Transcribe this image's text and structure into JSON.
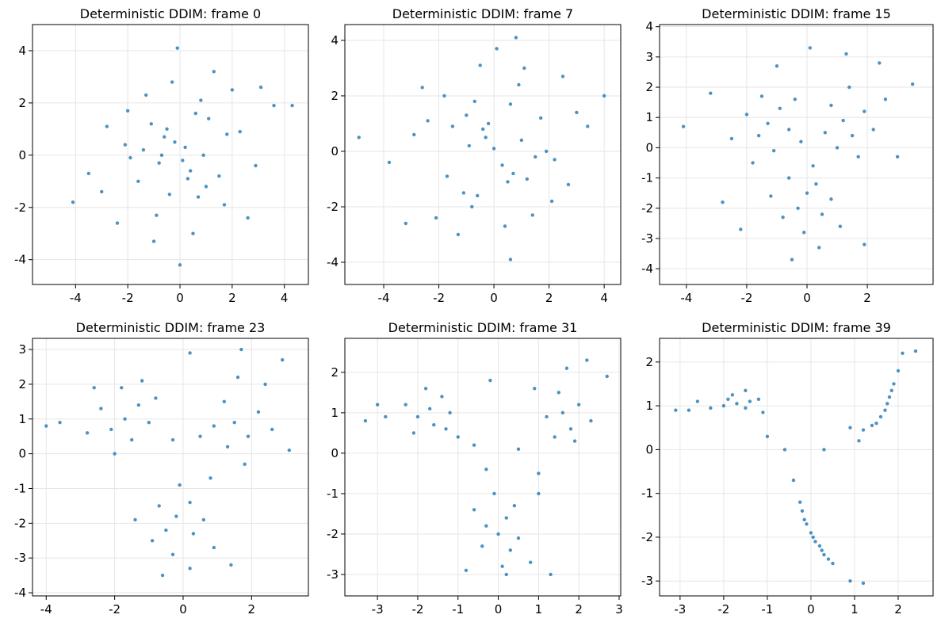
{
  "chart_data": [
    {
      "type": "scatter",
      "title": "Deterministic DDIM: frame 0",
      "color": "#1f77b4",
      "grid": true,
      "xlim": [
        -5.65,
        4.92
      ],
      "ylim": [
        -4.95,
        5.0
      ],
      "xticks": [
        -4,
        -2,
        0,
        2,
        4
      ],
      "yticks": [
        -4,
        -2,
        0,
        2,
        4
      ],
      "x": [
        0.2,
        -1.1,
        1.5,
        -0.4,
        0.8,
        -2.1,
        2.3,
        -0.9,
        0.1,
        1.1,
        -1.6,
        0.5,
        -0.3,
        2.9,
        -2.8,
        0.9,
        -0.6,
        1.7,
        -1.3,
        0.3,
        -0.1,
        3.6,
        -3.5,
        1.3,
        -2.4,
        0.6,
        -0.8,
        2.0,
        -1.9,
        0.0,
        1.0,
        -0.5,
        -4.1,
        4.3,
        -0.2,
        2.6,
        -1.0,
        0.4,
        -2.0,
        1.8,
        0.7,
        -1.4,
        -0.7,
        3.1,
        -3.0
      ],
      "values": [
        0.3,
        1.2,
        -0.8,
        -1.5,
        2.1,
        0.4,
        0.9,
        -2.3,
        -0.2,
        1.4,
        -1.0,
        -3.0,
        2.8,
        -0.4,
        1.1,
        0.0,
        0.7,
        -1.9,
        2.3,
        -0.9,
        4.1,
        1.9,
        -0.7,
        3.2,
        -2.6,
        1.6,
        -0.3,
        2.5,
        -0.1,
        -4.2,
        -1.2,
        1.0,
        -1.8,
        1.9,
        0.5,
        -2.4,
        -3.3,
        -0.6,
        1.7,
        0.8,
        -1.6,
        0.2,
        0.0,
        2.6,
        -1.4
      ]
    },
    {
      "type": "scatter",
      "title": "Deterministic DDIM: frame 7",
      "color": "#1f77b4",
      "grid": true,
      "xlim": [
        -5.41,
        4.6
      ],
      "ylim": [
        -4.8,
        4.57
      ],
      "xticks": [
        -4,
        -2,
        0,
        2,
        4
      ],
      "yticks": [
        -4,
        -2,
        0,
        2,
        4
      ],
      "x": [
        -0.3,
        1.2,
        -1.5,
        0.6,
        -0.8,
        2.2,
        -2.4,
        0.9,
        0.0,
        -1.1,
        1.7,
        -0.5,
        0.4,
        -2.9,
        2.7,
        -0.9,
        0.7,
        -1.8,
        1.4,
        -0.2,
        0.8,
        -3.8,
        3.4,
        -1.3,
        2.5,
        -0.6,
        1.0,
        -2.1,
        1.9,
        0.1,
        -1.0,
        0.5,
        4.0,
        -4.9,
        0.3,
        -2.6,
        1.1,
        -0.4,
        2.1,
        -1.7,
        -0.7,
        1.5,
        0.6,
        -3.2,
        3.0
      ],
      "values": [
        0.5,
        -1.0,
        0.9,
        1.7,
        -2.0,
        -0.3,
        1.1,
        2.4,
        0.1,
        -1.5,
        1.2,
        3.1,
        -2.7,
        0.6,
        -1.2,
        0.2,
        -0.8,
        2.0,
        -2.3,
        1.0,
        4.1,
        -0.4,
        0.9,
        -3.0,
        2.7,
        -1.6,
        0.4,
        -2.4,
        0.0,
        3.7,
        1.3,
        -1.1,
        2.0,
        0.5,
        -0.5,
        2.3,
        3.0,
        0.8,
        -1.8,
        -0.9,
        1.8,
        -0.2,
        -3.9,
        -2.6,
        1.4
      ]
    },
    {
      "type": "scatter",
      "title": "Deterministic DDIM: frame 15",
      "color": "#1f77b4",
      "grid": true,
      "xlim": [
        -4.89,
        4.18
      ],
      "ylim": [
        -4.52,
        4.07
      ],
      "xticks": [
        -4,
        -2,
        0,
        2
      ],
      "yticks": [
        -4,
        -3,
        -2,
        -1,
        0,
        1,
        2,
        3,
        4
      ],
      "x": [
        -1.3,
        -0.9,
        -1.6,
        -1.1,
        -2.0,
        -0.6,
        -1.5,
        -2.5,
        -0.4,
        -1.8,
        1.2,
        1.5,
        0.8,
        1.9,
        1.0,
        2.2,
        1.4,
        0.6,
        2.6,
        1.7,
        0.0,
        -0.3,
        0.3,
        -0.6,
        0.5,
        -0.1,
        0.8,
        -0.8,
        0.2,
        1.1,
        -1.2,
        0.4,
        -0.5,
        3.0,
        -3.2,
        -4.1,
        2.4,
        -2.8,
        1.9,
        0.1,
        -0.2,
        3.5,
        -1.0,
        1.3,
        -2.2
      ],
      "values": [
        0.8,
        1.3,
        0.4,
        -0.1,
        1.1,
        0.6,
        1.7,
        0.3,
        1.6,
        -0.5,
        0.9,
        0.4,
        1.4,
        1.2,
        0.0,
        0.6,
        2.0,
        0.5,
        1.6,
        -0.3,
        -1.5,
        -2.0,
        -1.2,
        -1.0,
        -2.2,
        -2.8,
        -1.7,
        -2.3,
        -0.6,
        -2.6,
        -1.6,
        -3.3,
        -3.7,
        -0.3,
        1.8,
        0.7,
        2.8,
        -1.8,
        -3.2,
        3.3,
        0.2,
        2.1,
        2.7,
        3.1,
        -2.7
      ]
    },
    {
      "type": "scatter",
      "title": "Deterministic DDIM: frame 23",
      "color": "#1f77b4",
      "grid": true,
      "xlim": [
        -4.4,
        3.66
      ],
      "ylim": [
        -4.09,
        3.32
      ],
      "xticks": [
        -4,
        -2,
        0,
        2
      ],
      "yticks": [
        -4,
        -3,
        -2,
        -1,
        0,
        1,
        2,
        3
      ],
      "x": [
        -1.7,
        -1.3,
        -2.1,
        -1.5,
        -2.4,
        -1.0,
        -1.8,
        -2.8,
        -1.2,
        -2.0,
        1.5,
        1.9,
        1.2,
        2.2,
        1.3,
        2.6,
        1.6,
        0.9,
        2.4,
        1.8,
        -0.2,
        -0.5,
        0.2,
        -0.7,
        0.3,
        -0.3,
        0.6,
        -0.9,
        -0.1,
        0.9,
        -1.4,
        0.2,
        -0.6,
        3.1,
        -3.6,
        -4.0,
        2.9,
        -0.3,
        1.4,
        0.2,
        0.5,
        -0.8,
        -2.6,
        0.8,
        1.7
      ],
      "values": [
        1.0,
        1.4,
        0.7,
        0.4,
        1.3,
        0.9,
        1.9,
        0.6,
        2.1,
        0.0,
        0.9,
        0.5,
        1.5,
        1.2,
        0.2,
        0.7,
        2.2,
        0.8,
        2.0,
        -0.3,
        -1.8,
        -2.2,
        -1.4,
        -1.5,
        -2.3,
        -2.9,
        -1.9,
        -2.5,
        -0.9,
        -2.7,
        -1.9,
        -3.3,
        -3.5,
        0.1,
        0.9,
        0.8,
        2.7,
        0.4,
        -3.2,
        2.9,
        0.5,
        1.6,
        1.9,
        -0.7,
        3.0
      ]
    },
    {
      "type": "scatter",
      "title": "Deterministic DDIM: frame 31",
      "color": "#1f77b4",
      "grid": true,
      "xlim": [
        -3.81,
        3.04
      ],
      "ylim": [
        -3.53,
        2.84
      ],
      "xticks": [
        -3,
        -2,
        -1,
        0,
        1,
        2,
        3
      ],
      "yticks": [
        -3,
        -2,
        -1,
        0,
        1,
        2
      ],
      "x": [
        -1.7,
        -1.4,
        -2.0,
        -1.6,
        -2.3,
        -1.2,
        -1.8,
        -2.8,
        -1.3,
        -2.1,
        1.6,
        1.8,
        1.5,
        2.0,
        1.4,
        2.3,
        1.7,
        1.2,
        2.2,
        1.9,
        0.0,
        -0.3,
        0.2,
        -0.4,
        0.3,
        0.1,
        0.5,
        -0.6,
        -0.1,
        0.8,
        0.4,
        0.2,
        -0.8,
        1.0,
        -3.3,
        -3.0,
        2.7,
        -0.6,
        1.3,
        -0.2,
        0.5,
        -1.0,
        1.0,
        -0.3,
        0.9
      ],
      "values": [
        1.1,
        1.4,
        0.9,
        0.7,
        1.2,
        1.0,
        1.6,
        0.9,
        0.6,
        0.5,
        1.0,
        0.6,
        1.5,
        1.2,
        0.4,
        0.8,
        2.1,
        0.9,
        2.3,
        0.3,
        -2.0,
        -1.8,
        -1.6,
        -2.3,
        -2.4,
        -2.8,
        -2.1,
        -1.4,
        -1.0,
        -2.7,
        -1.3,
        -3.0,
        -2.9,
        -1.0,
        0.8,
        1.2,
        1.9,
        0.2,
        -3.0,
        1.8,
        0.1,
        0.4,
        -0.5,
        -0.4,
        1.6
      ]
    },
    {
      "type": "scatter",
      "title": "Deterministic DDIM: frame 39",
      "color": "#1f77b4",
      "grid": true,
      "xlim": [
        -3.47,
        2.8
      ],
      "ylim": [
        -3.34,
        2.54
      ],
      "xticks": [
        -3,
        -2,
        -1,
        0,
        1,
        2
      ],
      "yticks": [
        -3,
        -2,
        -1,
        0,
        1,
        2
      ],
      "x": [
        -1.7,
        -1.4,
        -2.0,
        -1.5,
        -2.3,
        -1.2,
        -1.8,
        -2.8,
        -1.1,
        -1.9,
        1.5,
        1.7,
        1.8,
        1.9,
        1.6,
        2.0,
        1.4,
        1.75,
        2.1,
        1.85,
        -0.2,
        -0.1,
        0.0,
        0.1,
        0.2,
        0.3,
        0.5,
        -0.15,
        0.05,
        0.4,
        -0.25,
        0.25,
        0.9,
        -3.1,
        -2.6,
        2.4,
        -0.6,
        1.2,
        0.3,
        0.9,
        -1.0,
        1.1,
        -0.4,
        -1.5,
        1.2
      ],
      "values": [
        1.05,
        1.1,
        1.0,
        0.95,
        0.95,
        1.15,
        1.25,
        0.9,
        0.85,
        1.15,
        0.6,
        0.9,
        1.2,
        1.5,
        0.75,
        1.8,
        0.55,
        1.05,
        2.2,
        1.35,
        -1.4,
        -1.7,
        -1.9,
        -2.1,
        -2.2,
        -2.4,
        -2.6,
        -1.6,
        -2.0,
        -2.5,
        -1.2,
        -2.3,
        -3.0,
        0.9,
        1.1,
        2.25,
        0.0,
        -3.05,
        0.0,
        0.5,
        0.3,
        0.2,
        -0.7,
        1.35,
        0.45
      ]
    }
  ]
}
